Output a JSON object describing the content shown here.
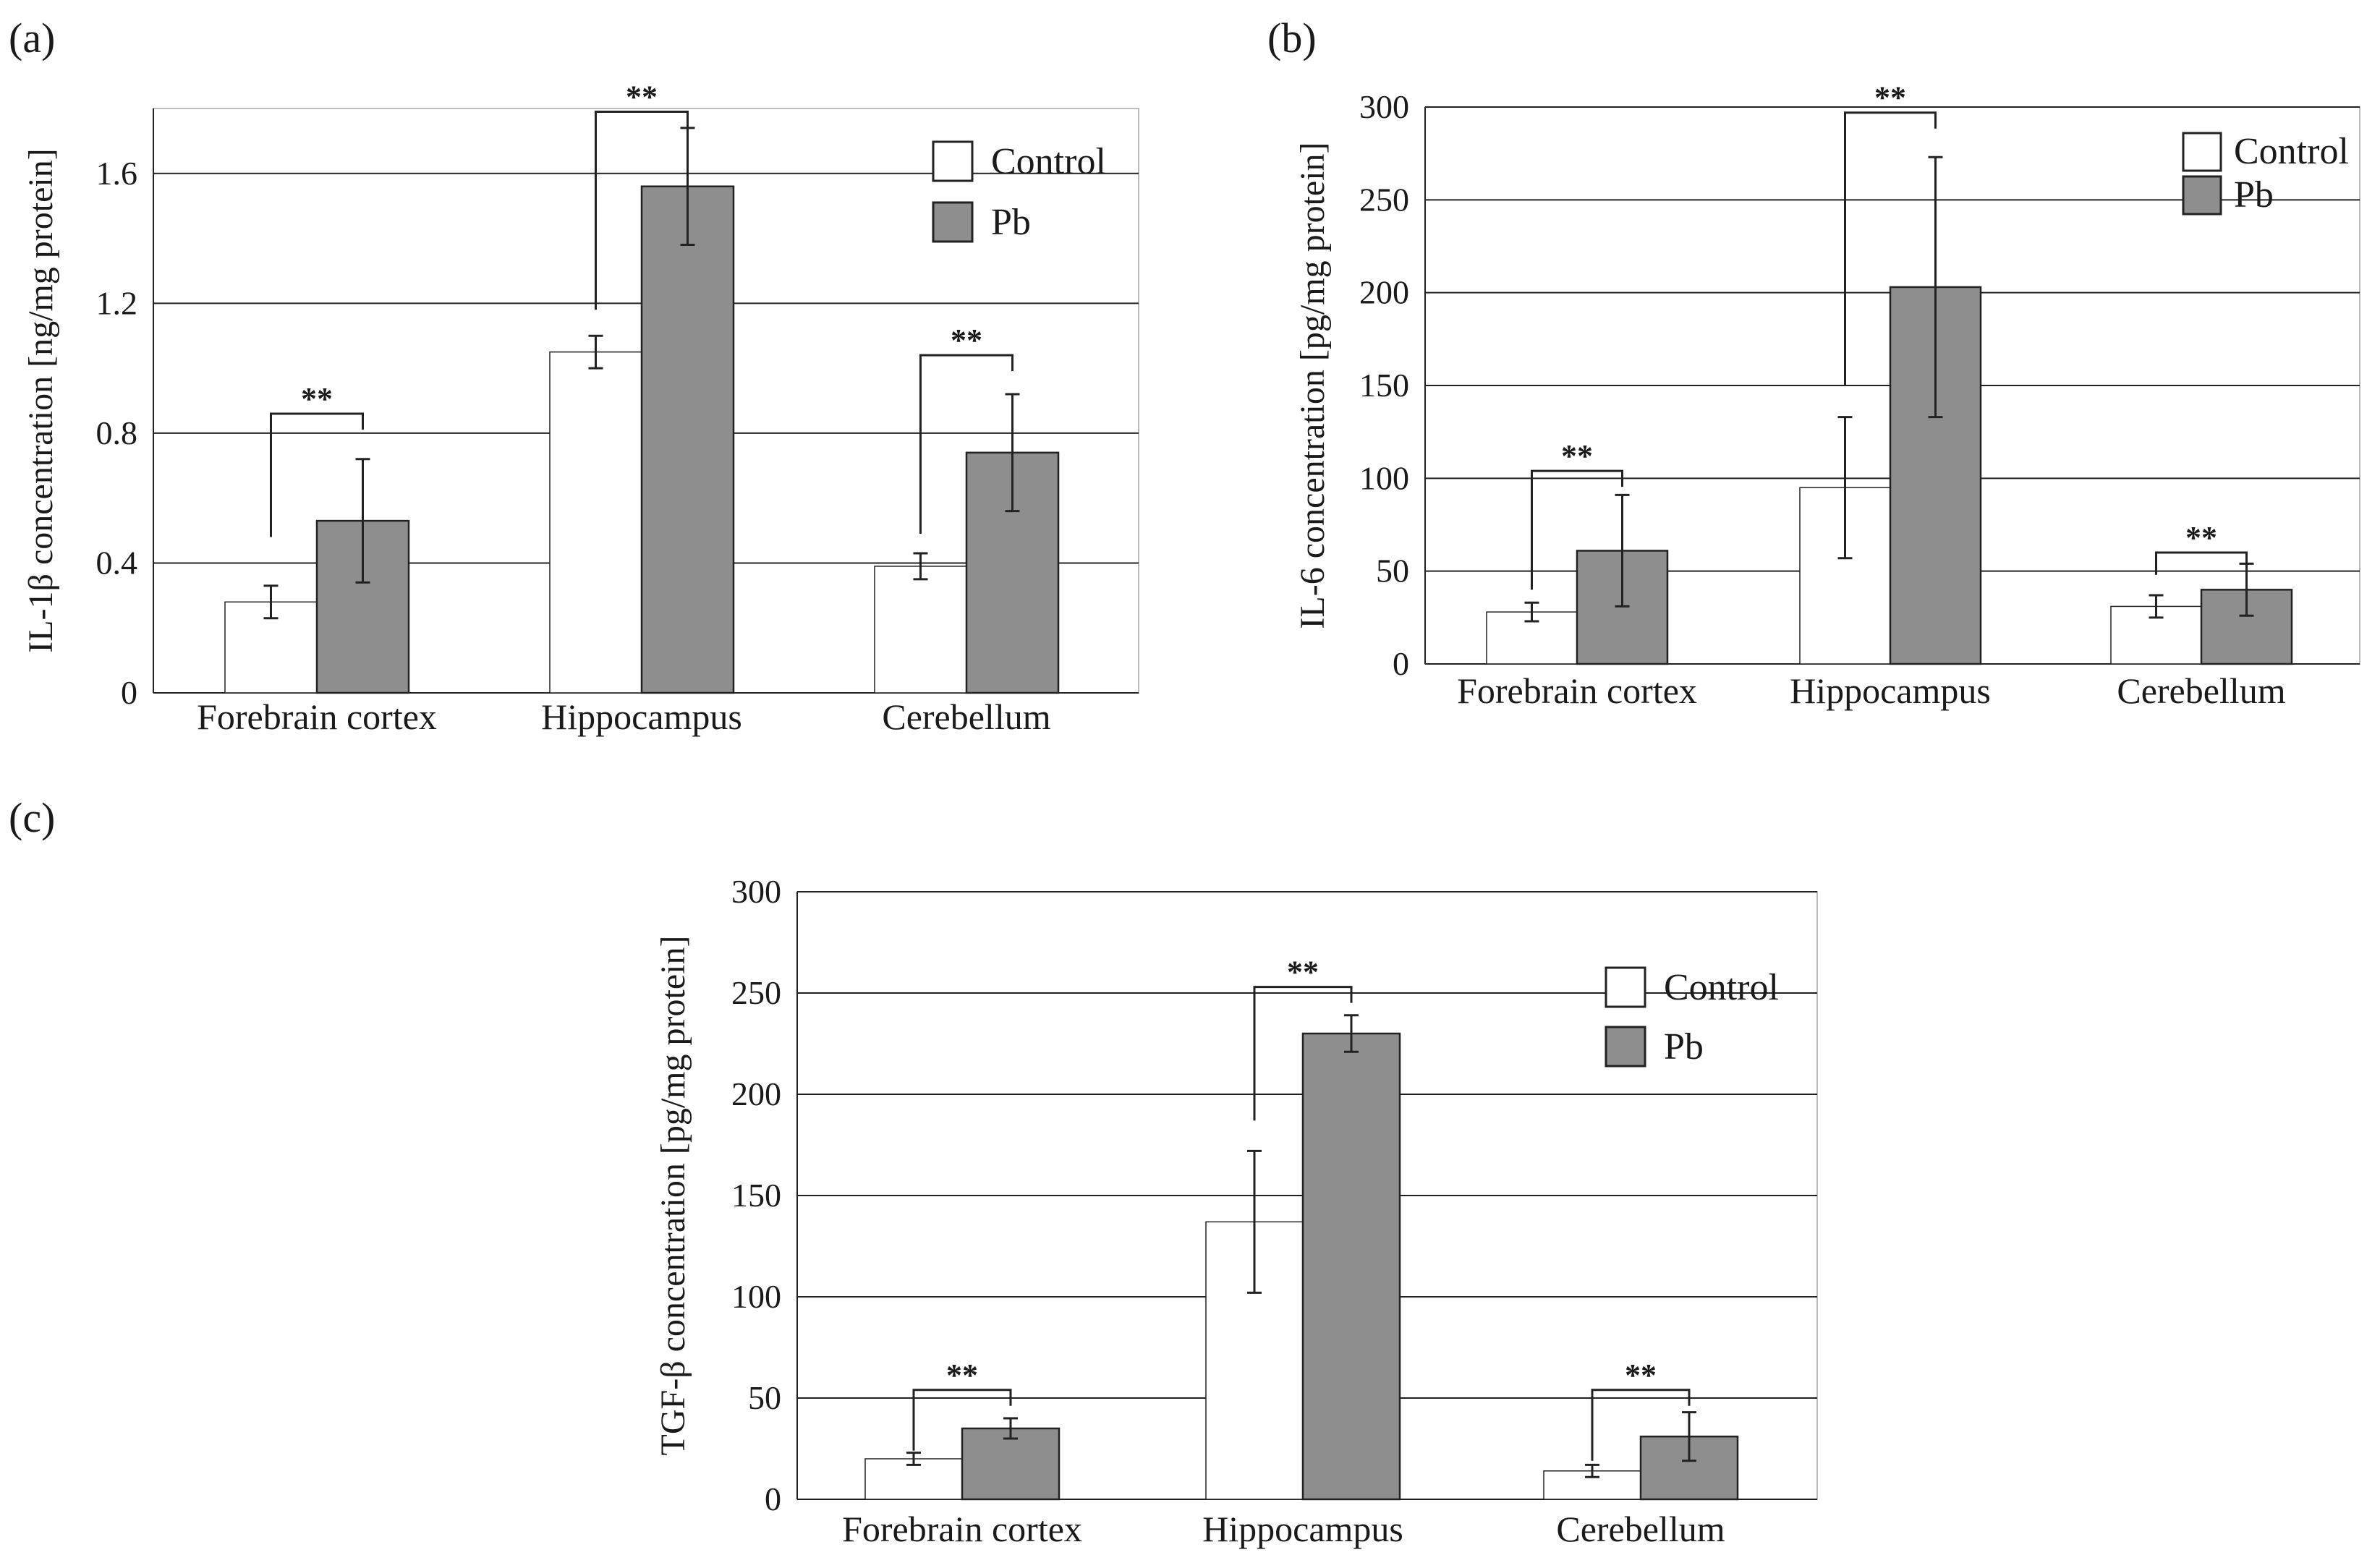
{
  "colors": {
    "control": "#ffffff",
    "pb": "#8e8e8e",
    "stroke": "#222222",
    "gridline": "#222222",
    "frame": "#bdbdbd"
  },
  "chart_data": [
    {
      "id": "a",
      "panel_label": "(a)",
      "type": "bar",
      "title": "",
      "xlabel": "",
      "ylabel": "IL-1β concentration [ng/mg protein]",
      "ylim": [
        0,
        1.8
      ],
      "yticks": [
        0,
        0.4,
        0.8,
        1.2,
        1.6
      ],
      "ytick_labels": [
        "0",
        "0.4",
        "0.8",
        "1.2",
        "1.6"
      ],
      "categories": [
        "Forebrain cortex",
        "Hippocampus",
        "Cerebellum"
      ],
      "series": [
        {
          "name": "Control",
          "color_key": "control",
          "values": [
            0.28,
            1.05,
            0.39
          ],
          "errors": [
            0.05,
            0.05,
            0.04
          ]
        },
        {
          "name": "Pb",
          "color_key": "pb",
          "values": [
            0.53,
            1.56,
            0.74
          ],
          "errors": [
            0.19,
            0.18,
            0.18
          ]
        }
      ],
      "significance": [
        {
          "category_index": 0,
          "label": "**",
          "line_from": 0.48,
          "top": 0.86
        },
        {
          "category_index": 1,
          "label": "**",
          "line_from": 1.18,
          "top": 1.79
        },
        {
          "category_index": 2,
          "label": "**",
          "line_from": 0.49,
          "top": 1.04
        }
      ],
      "legend": {
        "placement": "top-right",
        "entries": [
          "Control",
          "Pb"
        ]
      }
    },
    {
      "id": "b",
      "panel_label": "(b)",
      "type": "bar",
      "title": "",
      "xlabel": "",
      "ylabel": "IL-6 concentration [pg/mg protein]",
      "ylim": [
        0,
        300
      ],
      "yticks": [
        0,
        50,
        100,
        150,
        200,
        250,
        300
      ],
      "ytick_labels": [
        "0",
        "50",
        "100",
        "150",
        "200",
        "250",
        "300"
      ],
      "categories": [
        "Forebrain cortex",
        "Hippocampus",
        "Cerebellum"
      ],
      "series": [
        {
          "name": "Control",
          "color_key": "control",
          "values": [
            28,
            95,
            31
          ],
          "errors": [
            5,
            38,
            6
          ]
        },
        {
          "name": "Pb",
          "color_key": "pb",
          "values": [
            61,
            203,
            40
          ],
          "errors": [
            30,
            70,
            14
          ]
        }
      ],
      "significance": [
        {
          "category_index": 0,
          "label": "**",
          "line_from": 40,
          "top": 104
        },
        {
          "category_index": 1,
          "label": "**",
          "line_from": 150,
          "top": 297
        },
        {
          "category_index": 2,
          "label": "**",
          "line_from": 48,
          "top": 60
        }
      ],
      "legend": {
        "placement": "top-right",
        "entries": [
          "Control",
          "Pb"
        ]
      }
    },
    {
      "id": "c",
      "panel_label": "(c)",
      "type": "bar",
      "title": "",
      "xlabel": "",
      "ylabel": "TGF-β concentration [pg/mg protein]",
      "ylim": [
        0,
        300
      ],
      "yticks": [
        0,
        50,
        100,
        150,
        200,
        250,
        300
      ],
      "ytick_labels": [
        "0",
        "50",
        "100",
        "150",
        "200",
        "250",
        "300"
      ],
      "categories": [
        "Forebrain cortex",
        "Hippocampus",
        "Cerebellum"
      ],
      "series": [
        {
          "name": "Control",
          "color_key": "control",
          "values": [
            20,
            137,
            14
          ],
          "errors": [
            3,
            35,
            3
          ]
        },
        {
          "name": "Pb",
          "color_key": "pb",
          "values": [
            35,
            230,
            31
          ],
          "errors": [
            5,
            9,
            12
          ]
        }
      ],
      "significance": [
        {
          "category_index": 0,
          "label": "**",
          "line_from": 24,
          "top": 54
        },
        {
          "category_index": 1,
          "label": "**",
          "line_from": 187,
          "top": 253
        },
        {
          "category_index": 2,
          "label": "**",
          "line_from": 19,
          "top": 54
        }
      ],
      "legend": {
        "placement": "top-right",
        "entries": [
          "Control",
          "Pb"
        ]
      }
    }
  ]
}
